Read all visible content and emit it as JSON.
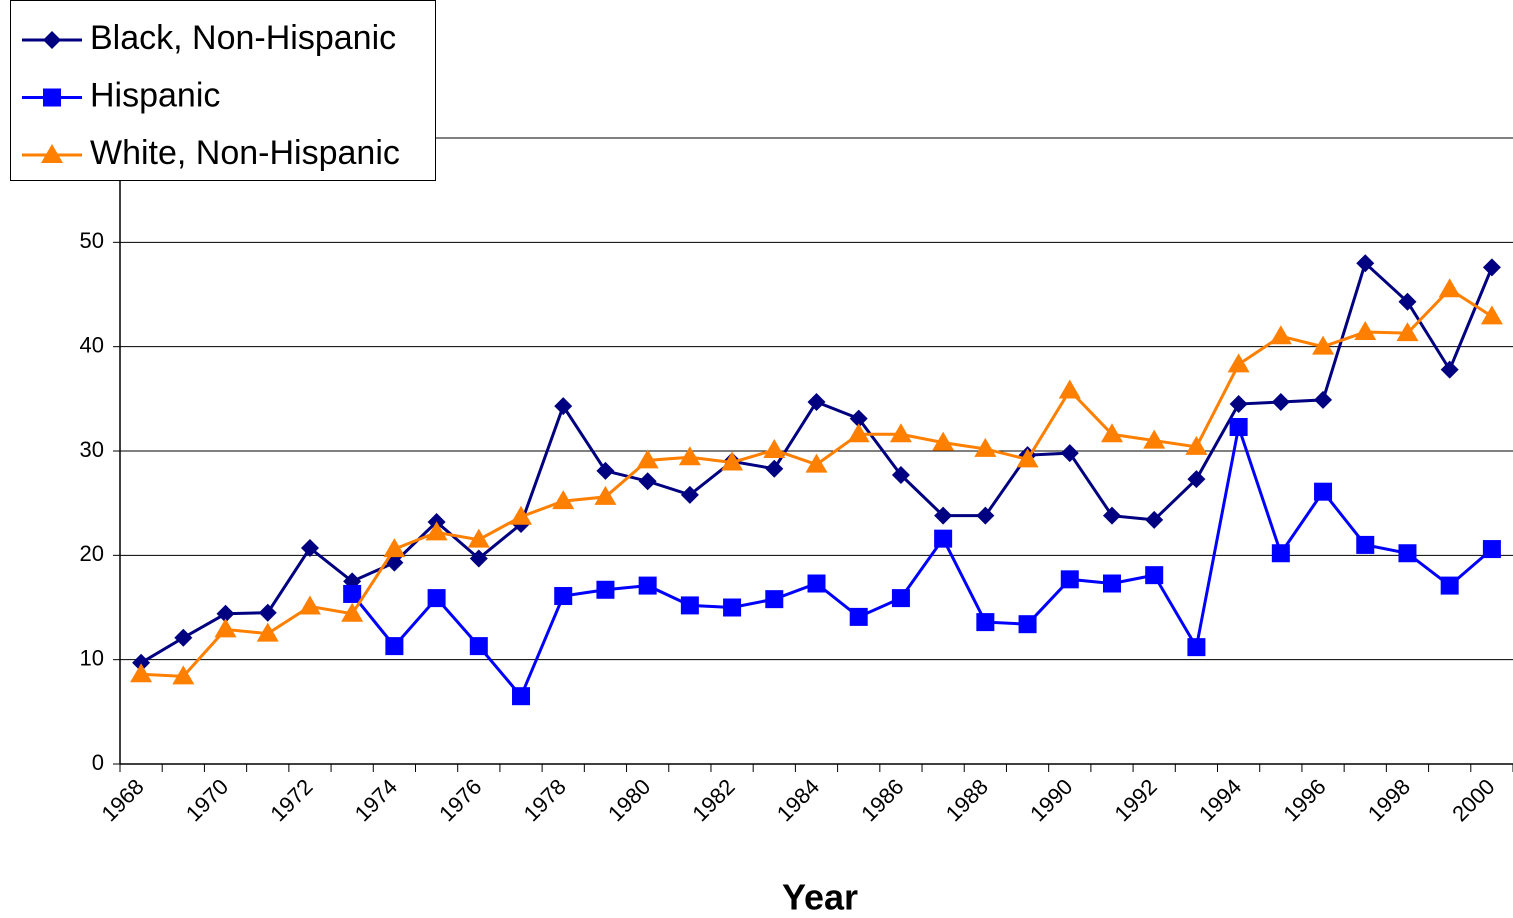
{
  "chart_data": {
    "type": "line",
    "x_label": "Year",
    "categories": [
      "1968",
      null,
      "1970",
      null,
      "1972",
      null,
      "1974",
      null,
      "1976",
      null,
      "1978",
      null,
      "1980",
      null,
      "1982",
      null,
      "1984",
      null,
      "1986",
      null,
      "1988",
      null,
      "1990",
      null,
      "1992",
      null,
      "1994",
      null,
      "1996",
      null,
      "1998",
      null,
      "2000"
    ],
    "series": [
      {
        "name": "Black, Non-Hispanic",
        "color": "#000080",
        "marker": "diamond",
        "values": [
          9.7,
          12.1,
          14.4,
          14.5,
          20.7,
          17.5,
          19.3,
          23.2,
          19.7,
          23.0,
          34.3,
          28.1,
          27.1,
          25.8,
          29.0,
          28.3,
          34.7,
          33.1,
          27.7,
          23.8,
          23.8,
          29.6,
          29.8,
          23.8,
          23.4,
          27.3,
          34.5,
          34.7,
          34.9,
          48.0,
          44.3,
          37.8,
          47.6
        ]
      },
      {
        "name": "Hispanic",
        "color": "#0000ff",
        "marker": "square",
        "values": [
          null,
          null,
          null,
          null,
          null,
          16.3,
          11.3,
          15.9,
          11.3,
          6.5,
          16.1,
          16.7,
          17.1,
          15.2,
          15.0,
          15.8,
          17.3,
          14.1,
          15.9,
          21.6,
          13.6,
          13.4,
          17.7,
          17.3,
          18.1,
          11.2,
          32.3,
          20.2,
          26.1,
          21.0,
          20.2,
          17.1,
          20.6
        ]
      },
      {
        "name": "White, Non-Hispanic",
        "color": "#ff7f00",
        "marker": "triangle",
        "values": [
          8.6,
          8.4,
          12.9,
          12.5,
          15.1,
          14.4,
          20.6,
          22.2,
          21.5,
          23.7,
          25.2,
          25.6,
          29.1,
          29.4,
          28.9,
          30.1,
          28.7,
          31.6,
          31.6,
          30.8,
          30.2,
          29.2,
          35.8,
          31.6,
          31.0,
          30.4,
          38.3,
          41.0,
          40.0,
          41.4,
          41.3,
          45.5,
          42.9
        ]
      }
    ],
    "ylim": [
      0,
      60
    ],
    "yticks": [
      0,
      10,
      20,
      30,
      40,
      50
    ],
    "grid": true,
    "legend": "top-left"
  }
}
